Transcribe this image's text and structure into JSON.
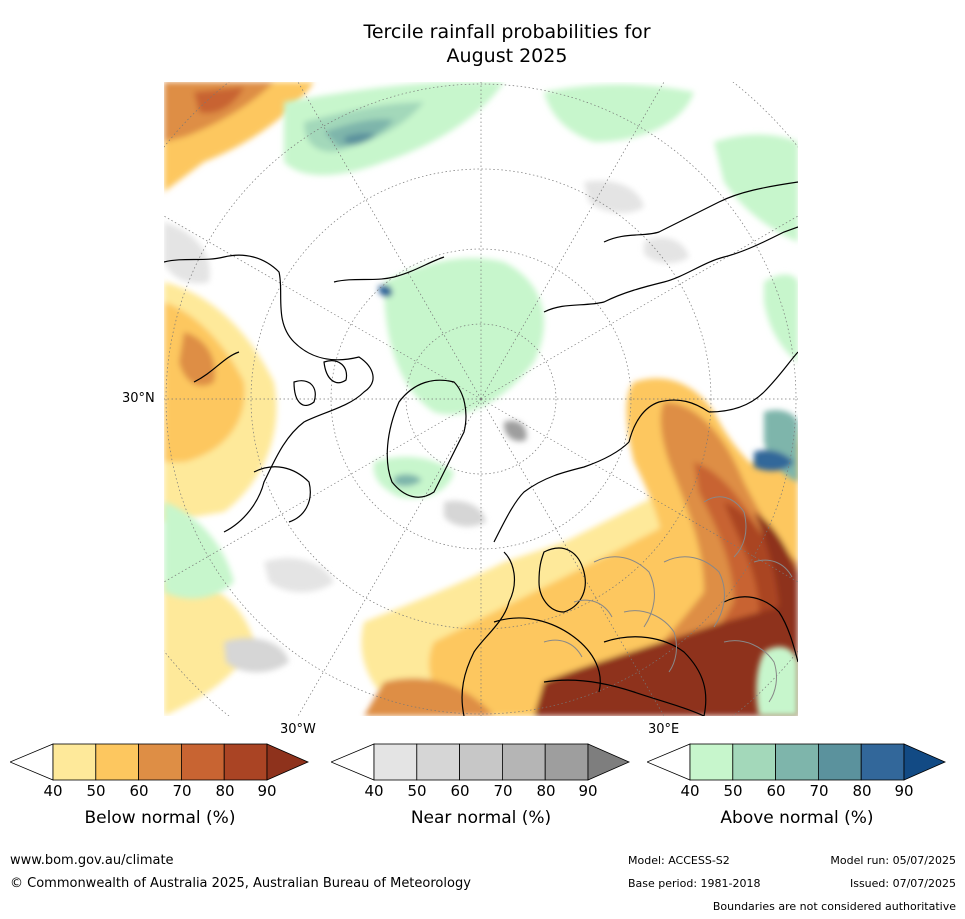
{
  "title": {
    "line1": "Tercile rainfall probabilities for",
    "line2": "August 2025"
  },
  "map": {
    "projection": "north-polar-stereographic",
    "lat_label": "30°N",
    "lon_labels": {
      "west": "30°W",
      "east": "30°E"
    }
  },
  "colorbars": [
    {
      "label": "Below normal (%)",
      "ticks": [
        "40",
        "50",
        "60",
        "70",
        "80",
        "90"
      ],
      "colors": [
        "#ffffff",
        "#fee99a",
        "#fdc75f",
        "#de8e45",
        "#c86432",
        "#aa4424",
        "#8e321c"
      ]
    },
    {
      "label": "Near normal (%)",
      "ticks": [
        "40",
        "50",
        "60",
        "70",
        "80",
        "90"
      ],
      "colors": [
        "#ffffff",
        "#e4e4e4",
        "#d6d6d6",
        "#c7c7c7",
        "#b5b5b5",
        "#9e9e9e",
        "#7e7e7e"
      ]
    },
    {
      "label": "Above normal (%)",
      "ticks": [
        "40",
        "50",
        "60",
        "70",
        "80",
        "90"
      ],
      "colors": [
        "#ffffff",
        "#c7f6cc",
        "#a3d8ba",
        "#7eb5ab",
        "#5b929d",
        "#32679a",
        "#124a84"
      ]
    }
  ],
  "footer": {
    "website": "www.bom.gov.au/climate",
    "copyright": "© Commonwealth of Australia 2025, Australian Bureau of Meteorology",
    "model": "Model: ACCESS-S2",
    "base_period": "Base period: 1981-2018",
    "model_run": "Model run: 05/07/2025",
    "issued": "Issued: 07/07/2025",
    "disclaimer": "Boundaries are not considered authoritative"
  }
}
